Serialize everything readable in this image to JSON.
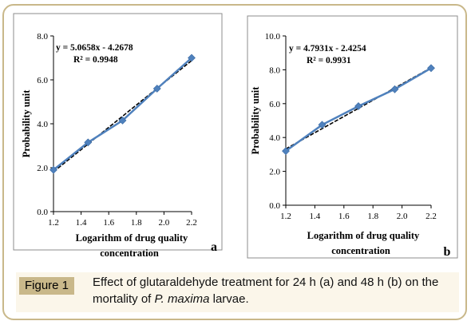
{
  "chart_data": [
    {
      "type": "scatter",
      "panel_label": "a",
      "xlabel_line1": "Logarithm of drug quality",
      "xlabel_line2": "concentration",
      "ylabel": "Probability unit",
      "xlim": [
        1.2,
        2.2
      ],
      "ylim": [
        0.0,
        8.0
      ],
      "xticks": [
        "1.2",
        "1.4",
        "1.6",
        "1.8",
        "2.0",
        "2.2"
      ],
      "yticks": [
        "0.0",
        "2.0",
        "4.0",
        "6.0",
        "8.0"
      ],
      "equation": "y = 5.0658x - 4.2678",
      "r_squared": "R² = 0.9948",
      "trend": {
        "slope": 5.0658,
        "intercept": -4.2678
      },
      "series": [
        {
          "x": [
            1.2,
            1.45,
            1.7,
            1.95,
            2.2
          ],
          "y": [
            1.9,
            3.15,
            4.15,
            5.6,
            7.0
          ]
        }
      ],
      "colors": {
        "series": "#4f81bd",
        "trend": "#000000"
      }
    },
    {
      "type": "scatter",
      "panel_label": "b",
      "xlabel_line1": "Logarithm of drug quality",
      "xlabel_line2": "concentration",
      "ylabel": "Probability unit",
      "xlim": [
        1.2,
        2.2
      ],
      "ylim": [
        0.0,
        10.0
      ],
      "xticks": [
        "1.2",
        "1.4",
        "1.6",
        "1.8",
        "2.0",
        "2.2"
      ],
      "yticks": [
        "0.0",
        "2.0",
        "4.0",
        "6.0",
        "8.0",
        "10.0"
      ],
      "equation": "y = 4.7931x - 2.4254",
      "r_squared": "R² = 0.9931",
      "trend": {
        "slope": 4.7931,
        "intercept": -2.4254
      },
      "series": [
        {
          "x": [
            1.2,
            1.45,
            1.7,
            1.95,
            2.2
          ],
          "y": [
            3.2,
            4.75,
            5.85,
            6.85,
            8.1
          ]
        }
      ],
      "colors": {
        "series": "#4f81bd",
        "trend": "#000000"
      }
    }
  ],
  "caption": {
    "label": "Figure 1",
    "text_part1": "Effect of glutaraldehyde treatment for 24 h (a) and 48 h (b) on the mortality of ",
    "text_species": "P. maxima",
    "text_part2": " larvae."
  }
}
